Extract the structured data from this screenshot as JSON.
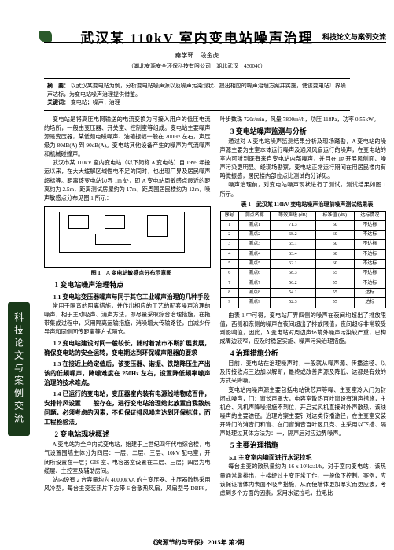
{
  "header": {
    "section_name": "科技论文与案例交流"
  },
  "title": "武汉某 110kV 室内变电站噪声治理",
  "authors": "秦学环　段金虎",
  "affiliation": "（湖北安源安全环保科技有限公司　湖北武汉　430040）",
  "abstract": {
    "label_a": "摘　要：",
    "text_a": "以武汉某变电站为例，分析变电站噪声源以及噪声污染现状、提出相应的噪声治理方案并实施，使该变电站厂界噪声达标，为变电站噪声治理提供借鉴。",
    "label_k": "关键词：",
    "text_k": "变电站；噪声；治理"
  },
  "intro": {
    "p1": "变电站是将高压电网输送的电流变换为可接入用户的低压电流的场所，一般由变压器、开关室、控制室等组成。变电站主要噪声源是变压器，某低频电磁噪声、油箱振幅一般在 200Hz 左右，声压级为 80dB(A) 到 90dB(A)。变电站其他设备产生的噪声为气流噪声和机械碰撞声。",
    "p2": "武汉市某 110kV 室内变电站（以下简称 A 变电站）自 1995 年投运以来，在大大缓解区域性电不足的同时，也出现厂界及居民噪声超标等。距离该变电站边界 1m 处，即 A 变电站周敏感点最近的距离约为 2.5m，距离测试房屋约为 17m，距周围居民楼约为 12m，噪声敏感点分布见图 1 所示："
  },
  "figure1": {
    "caption": "图 1　A 变电站敏感点分布示意图"
  },
  "section1": {
    "h": "1 变电站噪声治理特点",
    "sub1_h": "1.1 变电站变压器噪声与同于其它工业噪声治理的几种手段",
    "sub1_p": "常用于隔音的阻离措施，并作出相应的工艺的配套噪声治理的噪声，相于主动吸声、消声方法，即尽量采取综合治理措施，在拖带集成过程中，采用隔离运输措施，消噪增大传输路径，由减少传导声和同侧回传距离等方式隔仓。",
    "sub2_h": "1.2 变电站建设时间一般较长，随时着城市不断扩展发展，确保变电站的安全运转，变电期达到环保噪声限器的要求",
    "sub3_h": "1.3 在接近上给定值后，该变压器、谐振、铁路降压生产出该的低频噪声，降噪难度在 250Hz 左右，设置降低频率噪声治理的技术难点。",
    "sub4_h": "1.4 已运行的变电站，变压器室内装有电源线地物成百件，安排排风设置——般存在，进行变电站治理给此放置自我散热问题，必须考虑的因素，不但保证排风噪声达到环保标准，而工程检验法。"
  },
  "section2": {
    "h": "2 变电站现状概述",
    "p1": "A 变电站为全户内式变电站，始建于上世纪四年代电综合楼，电气设置围墙主体分为四层：一层、二层、三层、10kV 配电室，开闭所设置在一层；GIS 室、电容器室设置在二层、三层；四层为电缆层、主控室及辅助房间。",
    "p2": "站内设有 2 台容量均为 40000kVA 的主变压器、主压器散热采用风冷型，每台主变装热片下方带 6 台散热风扇，风扇型号 DBF6，叶步数珠 720r/min，风量 7800m³/h，功压 118Pa，功率 0.55kW。"
  },
  "section3": {
    "h": "3 变电站噪声监测与分析",
    "p1": "通过对 A 变电站噪声监测结果分析及现场踏勘，A 变电站的噪声源主要为主室本体运行噪声及通风风扇运行的噪声，在变电站的室内可听到既有来自变电站内部噪声，并且在 1# 开展风侧面、噪声污染更明显。经现场勘察，变电站正常运行期间在用居民楼内有略微振感，居民楼内部位点比测试的分详见。",
    "p2": "噪声治理前，对变电站噪声现状进行了测试，测试结果如图 1 所示。",
    "table_caption": "表 1　武汉某 110kV 变电站噪声治理前噪声测试结果表",
    "table": {
      "columns": [
        "序号",
        "测点名称",
        "等效声级 (dB)",
        "标准值 (dB)",
        "达标情况"
      ],
      "rows": [
        [
          "1",
          "测点1",
          "71.3",
          "60",
          "不达标"
        ],
        [
          "2",
          "测点2",
          "68.2",
          "60",
          "不达标"
        ],
        [
          "3",
          "测点3",
          "65.1",
          "60",
          "不达标"
        ],
        [
          "4",
          "测点4",
          "63.4",
          "60",
          "不达标"
        ],
        [
          "5",
          "测点5",
          "62.1",
          "60",
          "不达标"
        ],
        [
          "6",
          "测点6",
          "58.3",
          "55",
          "不达标"
        ],
        [
          "7",
          "测点7",
          "56.2",
          "55",
          "不达标"
        ],
        [
          "8",
          "测点8",
          "54.1",
          "55",
          "达标"
        ],
        [
          "9",
          "测点9",
          "52.3",
          "55",
          "达标"
        ]
      ]
    },
    "p3": "由表 1 中可得，变电站厂界四侧的噪声在夜间均超出了排放限值，西侧和东侧的噪声在夜间超出了排放限值，夜间超标非常较受到影响值，因此，A 变电站对周边声环境外噪声污染较严重，已构成周边较窄，应及时稳定实施、噪声污染治理措施。"
  },
  "section4": {
    "h": "4 治理措施分析",
    "p1": "目前，变电站在治理噪声时，一般就从噪声源、传播途径、以及传接收点三边加以解断，最终或改善声源及降低、这都是有效的方式来降噪。",
    "p2": "变电站内噪声源主要包括电站铁芯声等噪、主变室冷入门为封闭式噪声，门：窗长声罩大，电容室散热百叶窗设有消声措施，主机仓、风机声降噪措施不到位，开启式风机直接对外声散热，该线噪声的主要途径。治理方案主要针对这类传播途径，在主变室安装开降门的消音门和窗、在门窗消音百叶区贝壳、主采用以下措、隔声处理过其体方法为：一，隔声后对应边界噪声。"
  },
  "section5": {
    "h": "5 主要治理措施",
    "sub1_h": "5.1 主变室内墙面进行水泥拉毛",
    "sub1_p": "每台主变的散热量约为 16 x 10⁵kcal/h，对于室内变电站，该热量通常靠排出，主楼经过主变正常工作，一般像下控制、案例，应该保证墙体内表面不吸声措施，从而使墙体更加厚实而更应波，考虑到多个方面的因素，采用水泥拉毛，拉毛比"
  },
  "side_tab": "科技论文与案例交流",
  "footer": "《资源节约与环保》 2015年 第2期"
}
